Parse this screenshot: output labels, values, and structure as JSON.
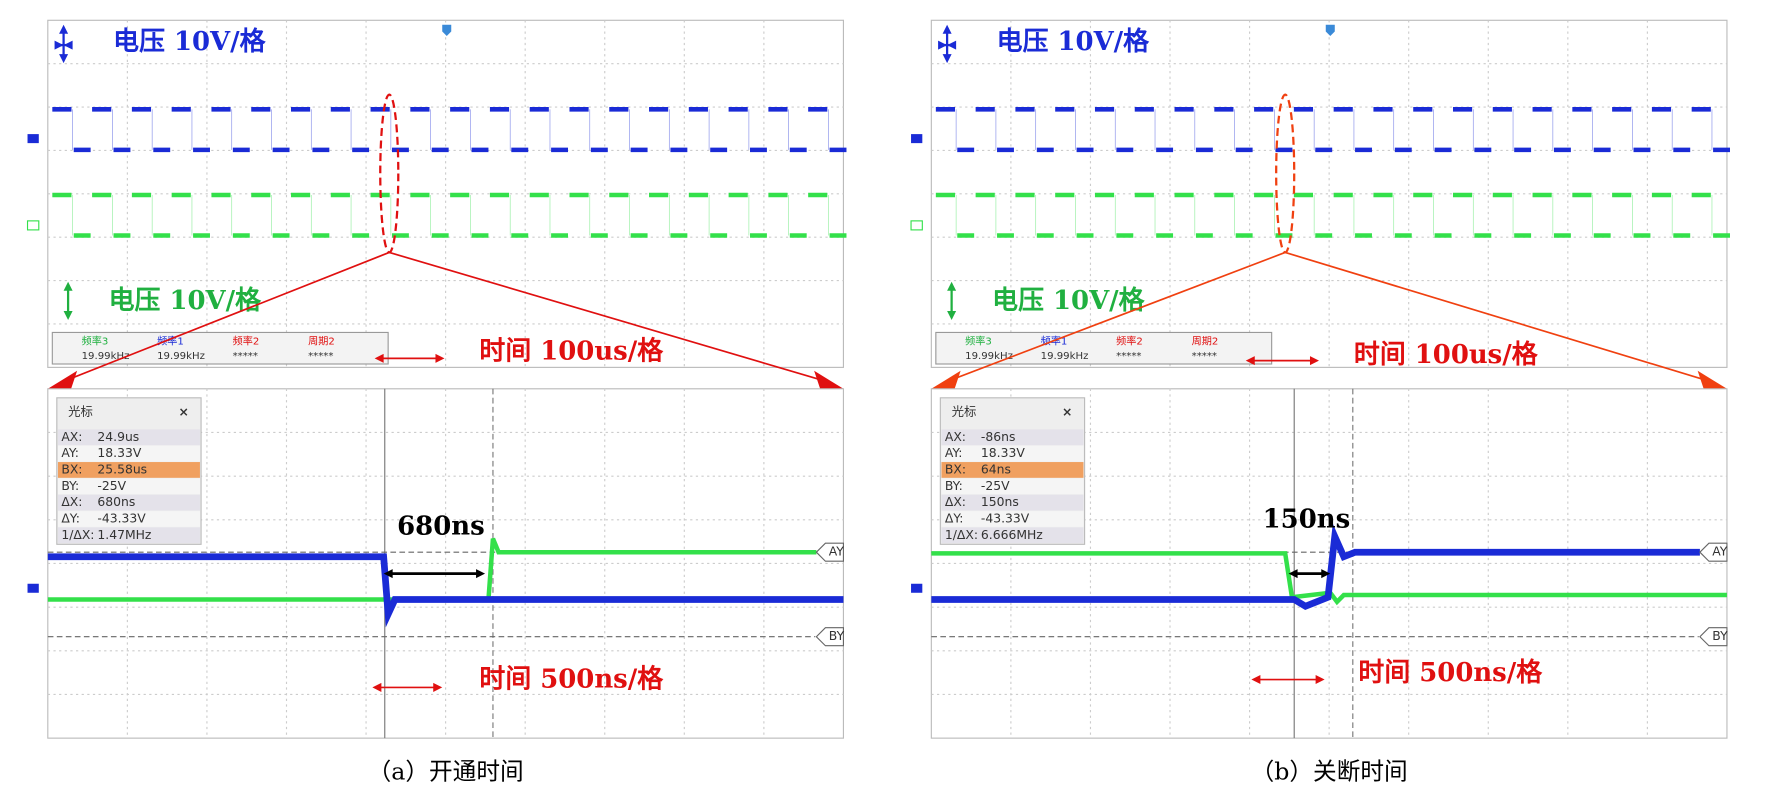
{
  "panels": [
    {
      "top": {
        "scale_blue": "电压 10V/格",
        "scale_green": "电压 10V/格",
        "time_scale": "时间 100us/格",
        "measurements": [
          {
            "label": "频率3",
            "value": "19.99kHz"
          },
          {
            "label": "频率1",
            "value": "19.99kHz"
          },
          {
            "label": "频率2",
            "value": "*****"
          },
          {
            "label": "周期2",
            "value": "*****"
          }
        ]
      },
      "cursor_box": {
        "title": "光标",
        "close": "×",
        "rows": [
          [
            "AX:",
            "24.9us"
          ],
          [
            "AY:",
            "18.33V"
          ],
          [
            "BX:",
            "25.58us"
          ],
          [
            "BY:",
            "-25V"
          ],
          [
            "ΔX:",
            "680ns"
          ],
          [
            "ΔY:",
            "-43.33V"
          ],
          [
            "1/ΔX:",
            "1.47MHz"
          ]
        ]
      },
      "delay_label": "680ns",
      "time_scale": "时间 500ns/格",
      "markers": [
        "AY",
        "BY"
      ],
      "caption": "（a）开通时间"
    },
    {
      "top": {
        "scale_blue": "电压 10V/格",
        "scale_green": "电压 10V/格",
        "time_scale": "时间 100us/格",
        "measurements": [
          {
            "label": "频率3",
            "value": "19.99kHz"
          },
          {
            "label": "频率1",
            "value": "19.99kHz"
          },
          {
            "label": "频率2",
            "value": "*****"
          },
          {
            "label": "周期2",
            "value": "*****"
          }
        ]
      },
      "cursor_box": {
        "title": "光标",
        "close": "×",
        "rows": [
          [
            "AX:",
            "-86ns"
          ],
          [
            "AY:",
            "18.33V"
          ],
          [
            "BX:",
            "64ns"
          ],
          [
            "BY:",
            "-25V"
          ],
          [
            "ΔX:",
            "150ns"
          ],
          [
            "ΔY:",
            "-43.33V"
          ],
          [
            "1/ΔX:",
            "6.666MHz"
          ]
        ]
      },
      "delay_label": "150ns",
      "time_scale": "时间 500ns/格",
      "markers": [
        "AY",
        "BY"
      ],
      "caption": "（b）关断时间"
    }
  ]
}
